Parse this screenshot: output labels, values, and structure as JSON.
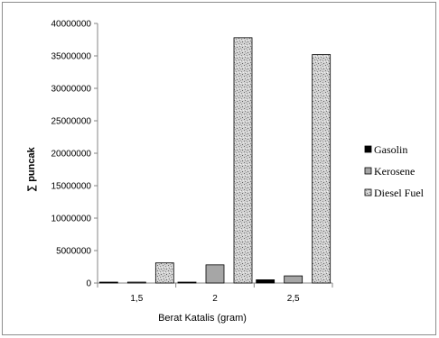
{
  "chart_data": {
    "type": "bar",
    "title": "",
    "xlabel": "Berat Katalis (gram)",
    "ylabel": "∑ puncak",
    "categories": [
      "1,5",
      "2",
      "2,5"
    ],
    "ylim": [
      0,
      40000000
    ],
    "yticks": [
      0,
      5000000,
      10000000,
      15000000,
      20000000,
      25000000,
      30000000,
      35000000,
      40000000
    ],
    "ytick_labels": [
      "0",
      "5000000",
      "10000000",
      "15000000",
      "20000000",
      "25000000",
      "30000000",
      "35000000",
      "40000000"
    ],
    "grid": false,
    "legend_position": "right",
    "series": [
      {
        "name": "Gasolin",
        "color": "#000000",
        "values": [
          0,
          100000,
          500000
        ]
      },
      {
        "name": "Kerosene",
        "color": "#a6a6a6",
        "values": [
          100000,
          2800000,
          1100000
        ]
      },
      {
        "name": "Diesel Fuel",
        "color": "#cfcfcf",
        "pattern": "speckled",
        "values": [
          3100000,
          37800000,
          35200000
        ]
      }
    ]
  }
}
